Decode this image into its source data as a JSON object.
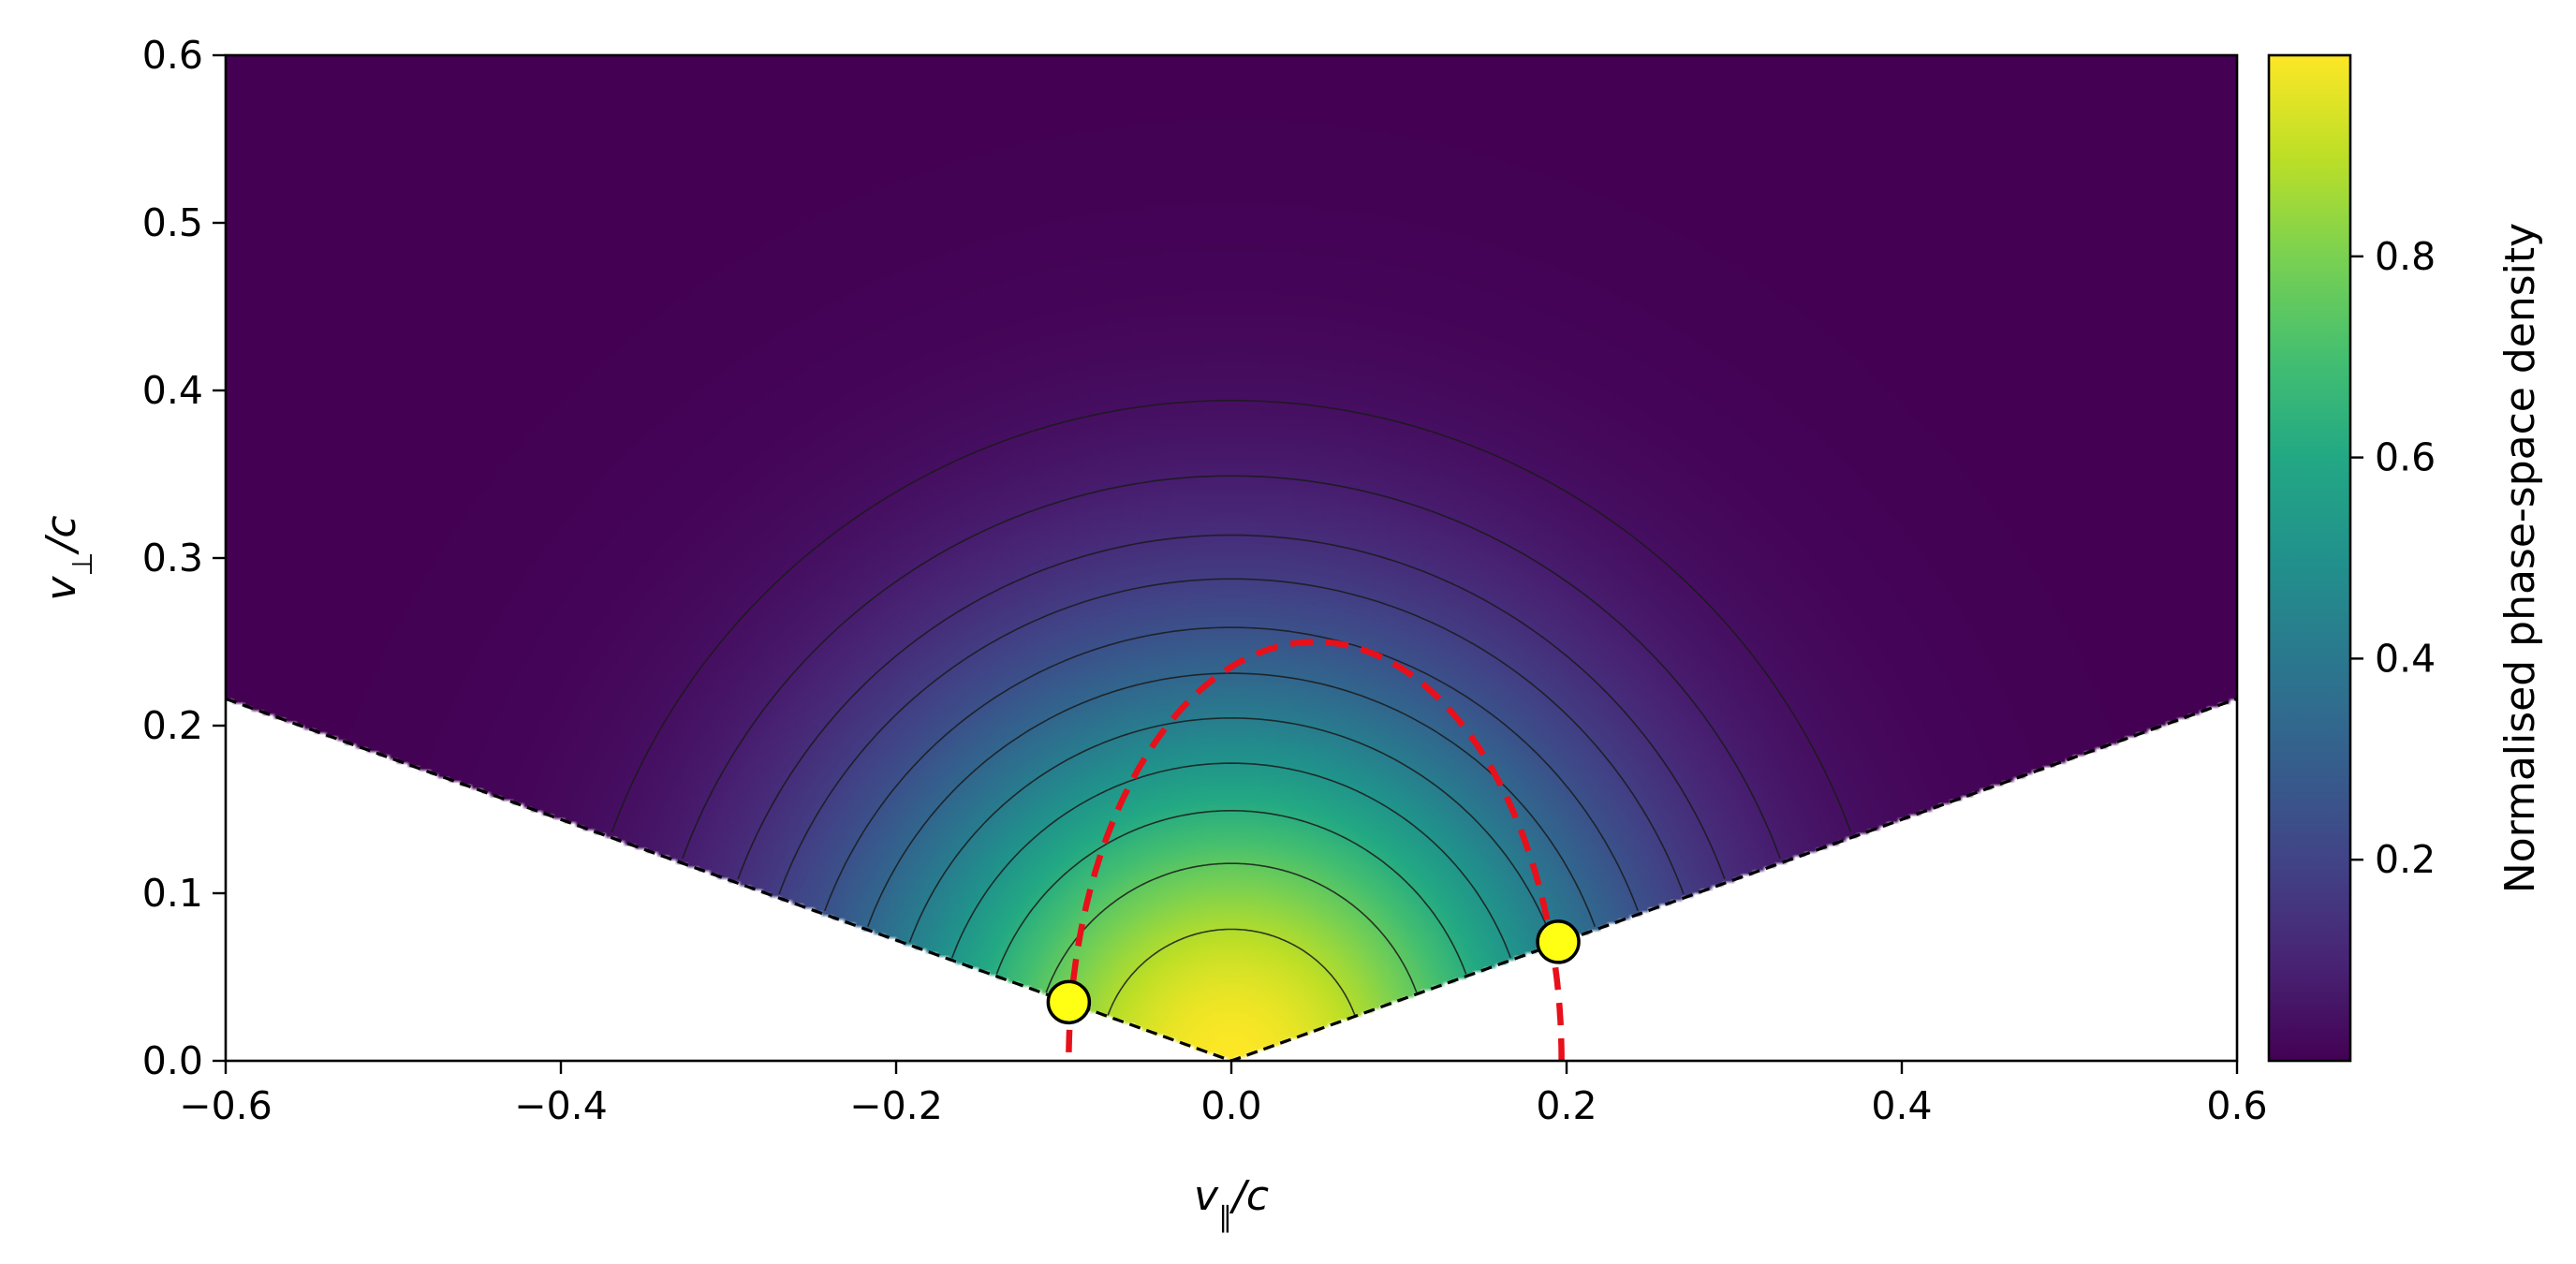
{
  "chart_data": {
    "type": "heatmap",
    "title": "",
    "xlabel": "v∥/c",
    "ylabel": "v⊥/c",
    "xlabel_parts": {
      "var": "v",
      "sub": "∥",
      "rest": "/c"
    },
    "ylabel_parts": {
      "var": "v",
      "sub": "⊥",
      "rest": "/c"
    },
    "xlim": [
      -0.6,
      0.6
    ],
    "ylim": [
      0.0,
      0.6
    ],
    "x_ticks": [
      -0.6,
      -0.4,
      -0.2,
      0.0,
      0.2,
      0.4,
      0.6
    ],
    "x_tick_labels": [
      "−0.6",
      "−0.4",
      "−0.2",
      "0.0",
      "0.2",
      "0.4",
      "0.6"
    ],
    "y_ticks": [
      0.0,
      0.1,
      0.2,
      0.3,
      0.4,
      0.5,
      0.6
    ],
    "y_tick_labels": [
      "0.0",
      "0.1",
      "0.2",
      "0.3",
      "0.4",
      "0.5",
      "0.6"
    ],
    "grid": false,
    "colormap": "viridis",
    "distribution": {
      "form": "exp(-(v_par^2/a^2 + v_perp^2/b^2))",
      "a": 0.2196,
      "b": 0.2196
    },
    "loss_cone": {
      "slope": 0.36,
      "line_color": "#000000",
      "line_style": "dashed",
      "region_below": "empty"
    },
    "contour_levels": [
      0.04,
      0.08,
      0.13,
      0.18,
      0.25,
      0.33,
      0.42,
      0.52,
      0.63,
      0.75,
      0.88
    ],
    "contour_color": "#1a1a1a",
    "resonance_curve": {
      "color": "#e8101a",
      "line_style": "dashed",
      "center": [
        0.05,
        0.0
      ],
      "radius_par": 0.147,
      "radius_perp": 0.25
    },
    "markers": [
      {
        "x": -0.097,
        "y": 0.035,
        "color": "#ffff14"
      },
      {
        "x": 0.195,
        "y": 0.071,
        "color": "#ffff14"
      }
    ],
    "colorbar": {
      "label": "Normalised phase-space density",
      "range": [
        0.0,
        1.0
      ],
      "ticks": [
        0.2,
        0.4,
        0.6,
        0.8
      ],
      "tick_labels": [
        "0.2",
        "0.4",
        "0.6",
        "0.8"
      ]
    }
  }
}
